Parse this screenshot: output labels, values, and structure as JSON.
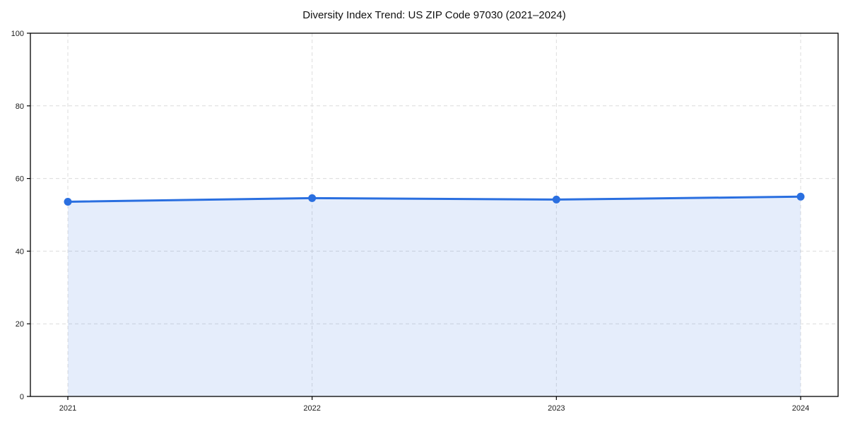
{
  "figure": {
    "background": "#ffffff"
  },
  "chart_data": {
    "type": "area",
    "title": "Diversity Index Trend: US ZIP Code 97030 (2021–2024)",
    "x": [
      2021,
      2022,
      2023,
      2024
    ],
    "x_tick_labels": [
      "2021",
      "2022",
      "2023",
      "2024"
    ],
    "series": [
      {
        "name": "Diversity Index",
        "values": [
          53.6,
          54.6,
          54.2,
          55.0
        ]
      }
    ],
    "xlabel": "",
    "ylabel": "",
    "ylim": [
      0,
      100
    ],
    "y_ticks": [
      0,
      20,
      40,
      60,
      80,
      100
    ],
    "y_tick_labels": [
      "0",
      "20",
      "40",
      "60",
      "80",
      "100"
    ],
    "grid": true,
    "grid_style": "dashed",
    "grid_color": "#dcdcdc",
    "legend_position": "none",
    "line_color": "#2a6fe0",
    "fill_color": "#2a6fe0",
    "fill_opacity": 0.12,
    "marker": "circle",
    "frame": "box",
    "frame_color": "#000000"
  }
}
